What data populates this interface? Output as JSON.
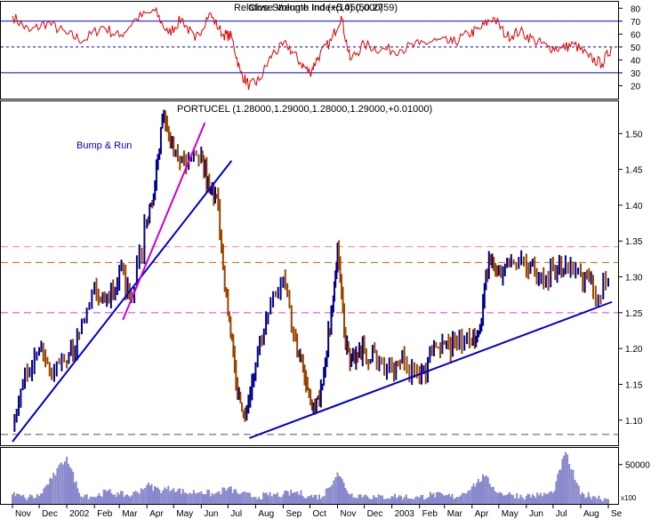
{
  "chart_data": [
    {
      "type": "line",
      "panel": "indicator",
      "title": "Relative Strength Index(14) (50.2759)",
      "title_overlap_text": "Close Volume Ind (+5,050,000)",
      "ylim": [
        10,
        85
      ],
      "y_ticks": [
        20,
        30,
        40,
        50,
        60,
        70,
        80
      ],
      "reference_lines": [
        {
          "value": 70,
          "style": "solid"
        },
        {
          "value": 50,
          "style": "dashed"
        },
        {
          "value": 30,
          "style": "solid"
        }
      ],
      "series": [
        {
          "color": "#dd0000",
          "x": [
            "2001-11-01",
            "2001-11-20",
            "2001-12-10",
            "2002-01-01",
            "2002-01-20",
            "2002-02-10",
            "2002-03-01",
            "2002-03-20",
            "2002-04-10",
            "2002-04-25",
            "2002-05-10",
            "2002-05-25",
            "2002-06-10",
            "2002-06-25",
            "2002-07-05",
            "2002-07-15",
            "2002-07-25",
            "2002-08-05",
            "2002-08-20",
            "2002-09-05",
            "2002-09-20",
            "2002-10-01",
            "2002-10-10",
            "2002-10-25",
            "2002-11-05",
            "2002-11-15",
            "2002-12-01",
            "2002-12-20",
            "2003-01-10",
            "2003-02-01",
            "2003-02-20",
            "2003-03-10",
            "2003-03-28",
            "2003-04-10",
            "2003-04-25",
            "2003-05-10",
            "2003-05-25",
            "2003-06-10",
            "2003-06-25",
            "2003-07-10",
            "2003-07-25",
            "2003-08-10",
            "2003-08-25",
            "2003-09-05"
          ],
          "values": [
            74,
            62,
            69,
            60,
            55,
            66,
            58,
            72,
            78,
            60,
            72,
            55,
            76,
            60,
            58,
            30,
            20,
            24,
            45,
            52,
            38,
            30,
            42,
            55,
            74,
            40,
            52,
            48,
            48,
            52,
            55,
            53,
            60,
            64,
            73,
            58,
            62,
            55,
            50,
            49,
            52,
            42,
            37,
            50
          ]
        }
      ]
    },
    {
      "type": "candlestick",
      "panel": "price",
      "title": "PORTUCEL (1.28000,1.29000,1.28000,1.29000,+0.01000)",
      "ylim": [
        1.065,
        1.545
      ],
      "y_ticks": [
        1.1,
        1.15,
        1.2,
        1.25,
        1.3,
        1.35,
        1.4,
        1.45,
        1.5
      ],
      "annotations": [
        {
          "text": "Bump & Run",
          "x": "2002-01-25",
          "y": 1.515
        }
      ],
      "horizontal_lines": [
        {
          "value": 1.342,
          "color": "#ff8888",
          "style": "dashed"
        },
        {
          "value": 1.32,
          "color": "#cc6600",
          "style": "dashed"
        },
        {
          "value": 1.25,
          "color": "#cc44cc",
          "style": "dashed"
        },
        {
          "value": 1.08,
          "color": "#555555",
          "style": "dashed"
        }
      ],
      "trendlines": [
        {
          "color": "#0000cc",
          "from": {
            "x": "2001-11-01",
            "y": 1.07
          },
          "to": {
            "x": "2002-07-05",
            "y": 1.462
          }
        },
        {
          "color": "#cc00cc",
          "from": {
            "x": "2002-03-05",
            "y": 1.24
          },
          "to": {
            "x": "2002-06-05",
            "y": 1.515
          }
        },
        {
          "color": "#0000cc",
          "from": {
            "x": "2002-07-25",
            "y": 1.075
          },
          "to": {
            "x": "2003-09-05",
            "y": 1.265
          }
        }
      ],
      "x": [
        "2001-11-01",
        "2001-11-15",
        "2001-12-01",
        "2001-12-15",
        "2002-01-01",
        "2002-01-15",
        "2002-02-01",
        "2002-02-15",
        "2002-03-01",
        "2002-03-15",
        "2002-04-01",
        "2002-04-10",
        "2002-04-20",
        "2002-05-01",
        "2002-05-15",
        "2002-06-01",
        "2002-06-10",
        "2002-06-20",
        "2002-07-01",
        "2002-07-10",
        "2002-07-20",
        "2002-08-01",
        "2002-08-15",
        "2002-09-01",
        "2002-09-15",
        "2002-09-25",
        "2002-10-05",
        "2002-10-15",
        "2002-10-25",
        "2002-11-01",
        "2002-11-10",
        "2002-11-20",
        "2002-12-01",
        "2002-12-15",
        "2003-01-01",
        "2003-01-15",
        "2003-02-01",
        "2003-02-15",
        "2003-03-01",
        "2003-03-15",
        "2003-04-01",
        "2003-04-10",
        "2003-04-20",
        "2003-05-01",
        "2003-05-15",
        "2003-06-01",
        "2003-06-15",
        "2003-07-01",
        "2003-07-15",
        "2003-08-01",
        "2003-08-15",
        "2003-09-01"
      ],
      "close": [
        1.09,
        1.17,
        1.2,
        1.16,
        1.18,
        1.22,
        1.29,
        1.27,
        1.31,
        1.27,
        1.38,
        1.43,
        1.53,
        1.47,
        1.45,
        1.47,
        1.42,
        1.4,
        1.25,
        1.15,
        1.1,
        1.18,
        1.25,
        1.3,
        1.21,
        1.16,
        1.12,
        1.15,
        1.25,
        1.34,
        1.2,
        1.18,
        1.2,
        1.18,
        1.17,
        1.18,
        1.16,
        1.19,
        1.21,
        1.2,
        1.21,
        1.23,
        1.33,
        1.31,
        1.32,
        1.31,
        1.3,
        1.31,
        1.32,
        1.3,
        1.28,
        1.29
      ]
    },
    {
      "type": "bar",
      "panel": "volume",
      "y_ticks": [
        50000
      ],
      "y_unit_label": "x100",
      "series": [
        {
          "color": "#8888cc",
          "x": [
            "2001-11-01",
            "2001-11-15",
            "2001-12-01",
            "2001-12-15",
            "2002-01-01",
            "2002-01-15",
            "2002-02-01",
            "2002-02-15",
            "2002-03-01",
            "2002-03-15",
            "2002-04-01",
            "2002-04-15",
            "2002-05-01",
            "2002-05-15",
            "2002-06-01",
            "2002-06-15",
            "2002-07-01",
            "2002-07-15",
            "2002-08-01",
            "2002-08-15",
            "2002-09-01",
            "2002-09-15",
            "2002-10-01",
            "2002-10-15",
            "2002-11-01",
            "2002-11-15",
            "2002-12-01",
            "2002-12-15",
            "2003-01-01",
            "2003-01-15",
            "2003-02-01",
            "2003-02-15",
            "2003-03-01",
            "2003-03-15",
            "2003-04-01",
            "2003-04-15",
            "2003-05-01",
            "2003-05-15",
            "2003-06-01",
            "2003-06-15",
            "2003-07-01",
            "2003-07-15",
            "2003-08-01",
            "2003-08-15",
            "2003-09-01"
          ],
          "values": [
            12000,
            8000,
            10000,
            32000,
            60000,
            14000,
            9000,
            16000,
            12000,
            11000,
            24000,
            18000,
            20000,
            14000,
            16000,
            12000,
            20000,
            13000,
            9000,
            11000,
            12000,
            15000,
            10000,
            9000,
            40000,
            12000,
            11000,
            8000,
            10000,
            9000,
            8000,
            12000,
            10000,
            9000,
            22000,
            35000,
            14000,
            12000,
            10000,
            11000,
            14000,
            66000,
            12000,
            10000,
            6000
          ]
        }
      ]
    }
  ],
  "x_axis": {
    "months": [
      "Nov",
      "Dec",
      "2002",
      "Feb",
      "Mar",
      "Apr",
      "May",
      "Jun",
      "Jul",
      "Aug",
      "Sep",
      "Oct",
      "Nov",
      "Dec",
      "2003",
      "Feb",
      "Mar",
      "Apr",
      "May",
      "Jun",
      "Jul",
      "Aug",
      "Se"
    ]
  }
}
